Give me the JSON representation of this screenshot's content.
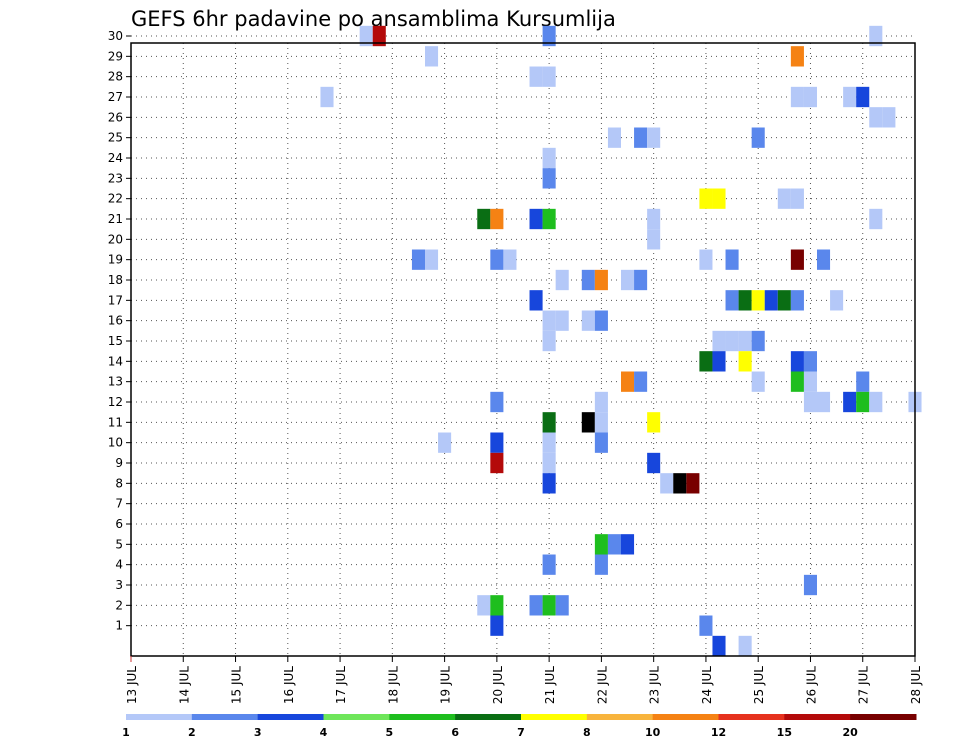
{
  "chart_data": {
    "type": "heatmap",
    "title": "GEFS 6hr padavine po ansamblima Kursumlija",
    "xlabel": "",
    "ylabel": "",
    "x_ticks": [
      "13 JUL",
      "14 JUL",
      "15 JUL",
      "16 JUL",
      "17 JUL",
      "18 JUL",
      "19 JUL",
      "20 JUL",
      "21 JUL",
      "22 JUL",
      "23 JUL",
      "24 JUL",
      "25 JUL",
      "26 JUL",
      "27 JUL",
      "28 JUL"
    ],
    "y_ticks": [
      1,
      2,
      3,
      4,
      5,
      6,
      7,
      8,
      9,
      10,
      11,
      12,
      13,
      14,
      15,
      16,
      17,
      18,
      19,
      20,
      21,
      22,
      23,
      24,
      25,
      26,
      27,
      28,
      29,
      30
    ],
    "xlim": [
      0,
      60
    ],
    "ylim": [
      0,
      30
    ],
    "x_unit_note": "",
    "grid": true,
    "legend": {
      "placement": "bottom",
      "labels": [
        "1",
        "2",
        "3",
        "4",
        "5",
        "6",
        "7",
        "8",
        "10",
        "12",
        "15",
        "20"
      ],
      "colors": [
        "#b4c8f8",
        "#5a87ec",
        "#1746dc",
        "#6ee65a",
        "#1ebe1e",
        "#0a6e14",
        "#ffff00",
        "#f8b43c",
        "#f58214",
        "#e6321e",
        "#b40a0a",
        "#780000"
      ]
    },
    "cells": [
      [
        30,
        18,
        0
      ],
      [
        30,
        19,
        10
      ],
      [
        30,
        32,
        1
      ],
      [
        30,
        57,
        0
      ],
      [
        29,
        23,
        0
      ],
      [
        29,
        51,
        8
      ],
      [
        28,
        31,
        0
      ],
      [
        28,
        32,
        0
      ],
      [
        27,
        15,
        0
      ],
      [
        27,
        51,
        0
      ],
      [
        27,
        52,
        0
      ],
      [
        27,
        55,
        0
      ],
      [
        27,
        56,
        2
      ],
      [
        26,
        57,
        0
      ],
      [
        26,
        58,
        0
      ],
      [
        25,
        37,
        0
      ],
      [
        25,
        39,
        1
      ],
      [
        25,
        40,
        0
      ],
      [
        25,
        48,
        1
      ],
      [
        24,
        32,
        0
      ],
      [
        23,
        32,
        1
      ],
      [
        22,
        44,
        6
      ],
      [
        22,
        45,
        6
      ],
      [
        22,
        50,
        0
      ],
      [
        22,
        51,
        0
      ],
      [
        21,
        27,
        5
      ],
      [
        21,
        28,
        8
      ],
      [
        21,
        31,
        2
      ],
      [
        21,
        32,
        4
      ],
      [
        21,
        40,
        0
      ],
      [
        21,
        57,
        0
      ],
      [
        20,
        40,
        0
      ],
      [
        19,
        22,
        1
      ],
      [
        19,
        23,
        0
      ],
      [
        19,
        28,
        1
      ],
      [
        19,
        29,
        0
      ],
      [
        19,
        44,
        0
      ],
      [
        19,
        46,
        1
      ],
      [
        19,
        51,
        11
      ],
      [
        19,
        53,
        1
      ],
      [
        18,
        33,
        0
      ],
      [
        18,
        35,
        1
      ],
      [
        18,
        36,
        8
      ],
      [
        18,
        38,
        0
      ],
      [
        18,
        39,
        1
      ],
      [
        17,
        31,
        2
      ],
      [
        17,
        46,
        1
      ],
      [
        17,
        47,
        5
      ],
      [
        17,
        48,
        6
      ],
      [
        17,
        49,
        2
      ],
      [
        17,
        50,
        5
      ],
      [
        17,
        51,
        1
      ],
      [
        17,
        54,
        0
      ],
      [
        16,
        32,
        0
      ],
      [
        16,
        33,
        0
      ],
      [
        16,
        35,
        0
      ],
      [
        16,
        36,
        1
      ],
      [
        15,
        32,
        0
      ],
      [
        15,
        45,
        0
      ],
      [
        15,
        46,
        0
      ],
      [
        15,
        47,
        0
      ],
      [
        15,
        48,
        1
      ],
      [
        14,
        44,
        5
      ],
      [
        14,
        45,
        2
      ],
      [
        14,
        47,
        6
      ],
      [
        14,
        51,
        2
      ],
      [
        14,
        52,
        1
      ],
      [
        13,
        38,
        8
      ],
      [
        13,
        39,
        1
      ],
      [
        13,
        48,
        0
      ],
      [
        13,
        51,
        4
      ],
      [
        13,
        52,
        0
      ],
      [
        13,
        56,
        1
      ],
      [
        12,
        28,
        1
      ],
      [
        12,
        36,
        0
      ],
      [
        12,
        52,
        0
      ],
      [
        12,
        53,
        0
      ],
      [
        12,
        55,
        2
      ],
      [
        12,
        56,
        4
      ],
      [
        12,
        57,
        0
      ],
      [
        12,
        60,
        0
      ],
      [
        11,
        32,
        5
      ],
      [
        11,
        35,
        12
      ],
      [
        11,
        36,
        0
      ],
      [
        11,
        40,
        6
      ],
      [
        10,
        24,
        0
      ],
      [
        10,
        28,
        2
      ],
      [
        10,
        32,
        0
      ],
      [
        10,
        36,
        1
      ],
      [
        9,
        28,
        10
      ],
      [
        9,
        32,
        0
      ],
      [
        9,
        40,
        2
      ],
      [
        8,
        32,
        2
      ],
      [
        8,
        41,
        0
      ],
      [
        8,
        42,
        12
      ],
      [
        8,
        43,
        11
      ],
      [
        5,
        36,
        4
      ],
      [
        5,
        37,
        1
      ],
      [
        5,
        38,
        2
      ],
      [
        4,
        32,
        1
      ],
      [
        4,
        36,
        1
      ],
      [
        3,
        52,
        1
      ],
      [
        2,
        27,
        0
      ],
      [
        2,
        28,
        4
      ],
      [
        2,
        31,
        1
      ],
      [
        2,
        32,
        4
      ],
      [
        2,
        33,
        1
      ],
      [
        1,
        28,
        2
      ],
      [
        1,
        44,
        1
      ],
      [
        0,
        45,
        2
      ],
      [
        0,
        47,
        0
      ]
    ]
  }
}
